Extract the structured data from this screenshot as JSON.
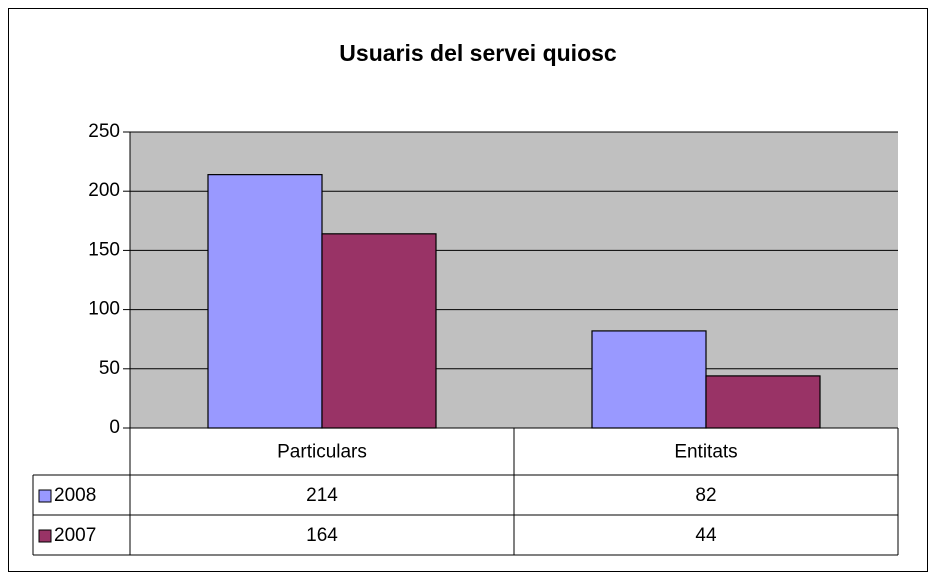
{
  "chart_data": {
    "type": "bar",
    "title": "Usuaris del servei quiosc",
    "categories": [
      "Particulars",
      "Entitats"
    ],
    "series": [
      {
        "name": "2008",
        "color": "#9999ff",
        "values": [
          214,
          82
        ]
      },
      {
        "name": "2007",
        "color": "#993366",
        "values": [
          164,
          44
        ]
      }
    ],
    "ylim": [
      0,
      250
    ],
    "yticks": [
      0,
      50,
      100,
      150,
      200,
      250
    ],
    "grid": true,
    "plot_background": "#c0c0c0",
    "data_table": true
  }
}
